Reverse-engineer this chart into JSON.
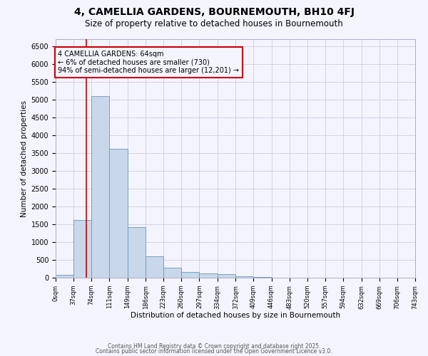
{
  "title": "4, CAMELLIA GARDENS, BOURNEMOUTH, BH10 4FJ",
  "subtitle": "Size of property relative to detached houses in Bournemouth",
  "xlabel": "Distribution of detached houses by size in Bournemouth",
  "ylabel": "Number of detached properties",
  "bin_edges": [
    0,
    37,
    74,
    111,
    149,
    186,
    223,
    260,
    297,
    334,
    372,
    409,
    446,
    483,
    520,
    557,
    594,
    632,
    669,
    706,
    743
  ],
  "bar_heights": [
    75,
    1620,
    5100,
    3630,
    1430,
    610,
    290,
    155,
    130,
    95,
    40,
    20,
    8,
    3,
    2,
    1,
    0,
    0,
    0,
    0
  ],
  "bar_color": "#c8d8ea",
  "bar_edgecolor": "#6699bb",
  "property_value": 64,
  "vline_color": "#cc0000",
  "annotation_text": "4 CAMELLIA GARDENS: 64sqm\n← 6% of detached houses are smaller (730)\n94% of semi-detached houses are larger (12,201) →",
  "annotation_box_color": "#cc0000",
  "ylim": [
    0,
    6700
  ],
  "yticks": [
    0,
    500,
    1000,
    1500,
    2000,
    2500,
    3000,
    3500,
    4000,
    4500,
    5000,
    5500,
    6000,
    6500
  ],
  "bg_color": "#f4f4ff",
  "grid_color": "#ccccdd",
  "footer_line1": "Contains HM Land Registry data © Crown copyright and database right 2025.",
  "footer_line2": "Contains public sector information licensed under the Open Government Licence v3.0.",
  "title_fontsize": 10,
  "subtitle_fontsize": 8.5
}
